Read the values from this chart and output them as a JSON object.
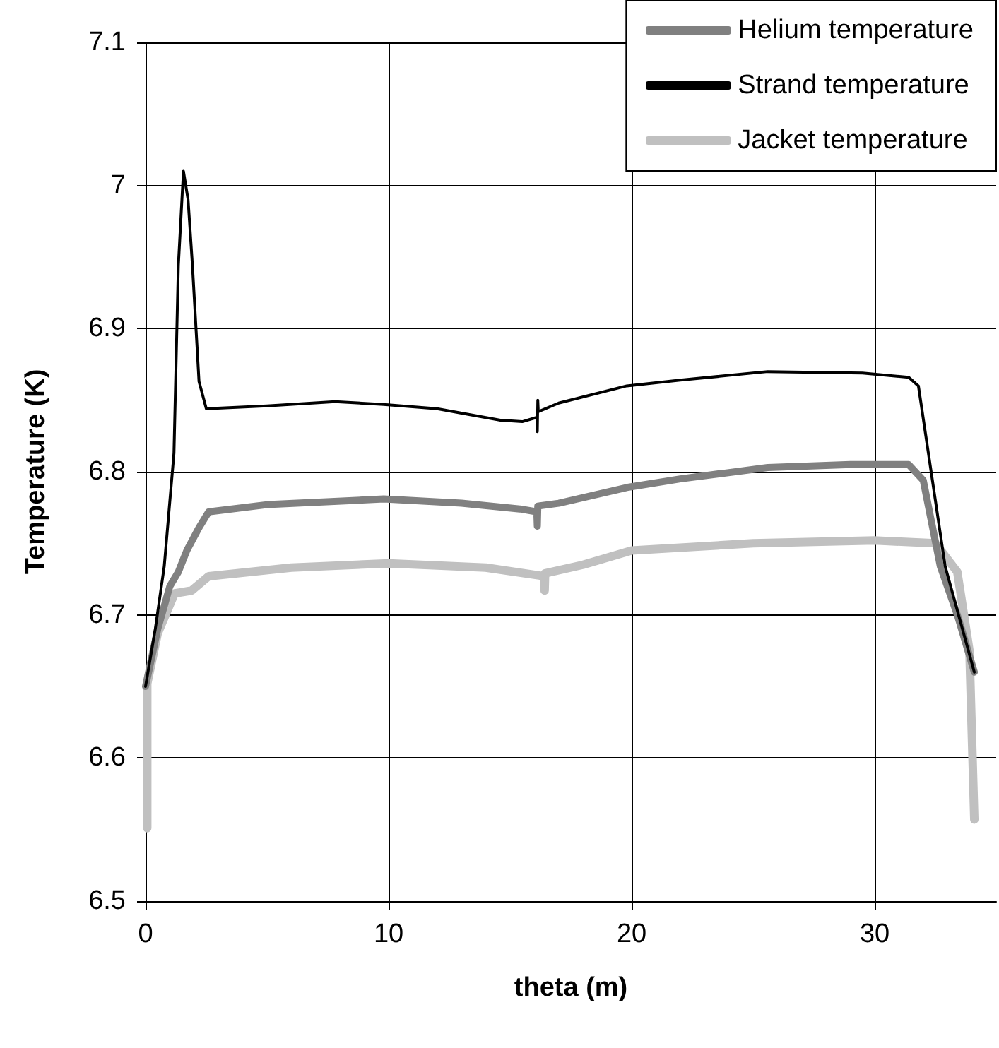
{
  "chart_data": {
    "type": "line",
    "xlabel": "theta (m)",
    "ylabel": "Temperature (K)",
    "xlim": [
      0,
      35
    ],
    "xticks": [
      0,
      10,
      20,
      30
    ],
    "ylim": [
      6.5,
      7.1
    ],
    "yticks": [
      6.5,
      6.6,
      6.7,
      6.8,
      6.9,
      7,
      7.1
    ],
    "grid": true,
    "legend": "top right",
    "marker": "none",
    "line_style": "solid",
    "series": [
      {
        "name": "Helium temperature",
        "color": "#808080",
        "x": [
          0,
          0.5,
          1,
          1.35,
          1.7,
          2.2,
          2.6,
          5,
          9.8,
          13,
          15.4,
          16.1,
          16.12,
          16.14,
          17,
          19.8,
          22,
          25.6,
          29,
          31.4,
          32,
          32.7,
          33.4,
          34.1
        ],
        "values": [
          6.65,
          6.69,
          6.72,
          6.73,
          6.745,
          6.761,
          6.772,
          6.777,
          6.781,
          6.778,
          6.774,
          6.772,
          6.762,
          6.776,
          6.778,
          6.789,
          6.795,
          6.803,
          6.805,
          6.805,
          6.794,
          6.734,
          6.7,
          6.66
        ]
      },
      {
        "name": "Strand temperature",
        "color": "#000000",
        "x": [
          0,
          0.4,
          0.77,
          1.17,
          1.35,
          1.56,
          1.75,
          1.93,
          2.2,
          2.5,
          5,
          7.8,
          9.8,
          12,
          14.6,
          15.5,
          16.1,
          16.12,
          16.14,
          16.16,
          17,
          19.8,
          22,
          25.6,
          29.5,
          31.4,
          31.8,
          32.9,
          34.1
        ],
        "values": [
          6.65,
          6.69,
          6.734,
          6.813,
          6.944,
          7.01,
          6.99,
          6.944,
          6.863,
          6.844,
          6.846,
          6.849,
          6.847,
          6.844,
          6.836,
          6.835,
          6.838,
          6.828,
          6.85,
          6.842,
          6.848,
          6.86,
          6.864,
          6.87,
          6.869,
          6.866,
          6.86,
          6.734,
          6.66
        ]
      },
      {
        "name": "Jacket temperature",
        "color": "#c0c0c0",
        "x": [
          0.07,
          0.07,
          0.5,
          1.2,
          1.9,
          2.6,
          6,
          10,
          14,
          16.4,
          16.42,
          16.44,
          18,
          20,
          25,
          30,
          32.5,
          33.4,
          33.9,
          34.1
        ],
        "values": [
          6.551,
          6.652,
          6.687,
          6.715,
          6.717,
          6.727,
          6.733,
          6.736,
          6.733,
          6.727,
          6.717,
          6.729,
          6.735,
          6.745,
          6.75,
          6.752,
          6.75,
          6.73,
          6.675,
          6.557
        ]
      }
    ]
  }
}
